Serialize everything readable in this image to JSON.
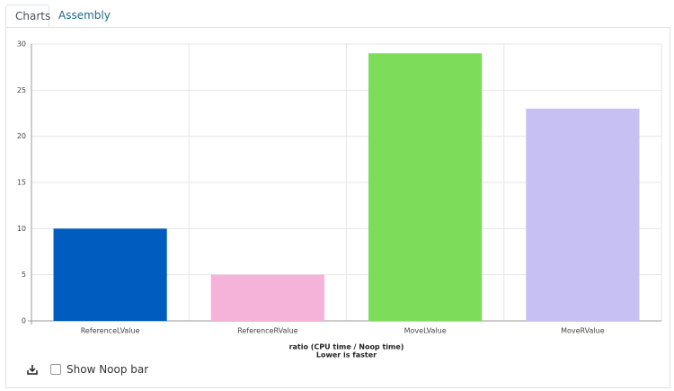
{
  "tabs": [
    "Charts",
    "Assembly"
  ],
  "chart_data": {
    "type": "bar",
    "categories": [
      "ReferenceLValue",
      "ReferenceRValue",
      "MoveLValue",
      "MoveRValue"
    ],
    "values": [
      10,
      5,
      29,
      23
    ],
    "colors": [
      "#005cbf",
      "#f5b3d9",
      "#7ddc5a",
      "#c7c0f3"
    ],
    "ylim": [
      0,
      30
    ],
    "yticks": [
      0,
      5,
      10,
      15,
      20,
      25,
      30
    ],
    "grid": true,
    "x_label": [
      "ratio (CPU time / Noop time)",
      "Lower is faster"
    ]
  },
  "controls": {
    "checkbox_label": "Show Noop bar"
  }
}
